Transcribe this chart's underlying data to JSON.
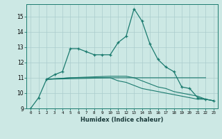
{
  "xlabel": "Humidex (Indice chaleur)",
  "x": [
    0,
    1,
    2,
    3,
    4,
    5,
    6,
    7,
    8,
    9,
    10,
    11,
    12,
    13,
    14,
    15,
    16,
    17,
    18,
    19,
    20,
    21,
    22,
    23
  ],
  "line1": [
    9.0,
    9.7,
    10.9,
    11.2,
    11.4,
    12.9,
    12.9,
    12.7,
    12.5,
    12.5,
    12.5,
    13.3,
    13.7,
    15.5,
    14.7,
    13.2,
    12.2,
    11.7,
    11.4,
    10.4,
    10.3,
    9.7,
    9.6,
    9.5
  ],
  "line2_x": [
    2,
    10,
    11,
    12,
    13,
    14,
    15,
    16,
    17,
    18,
    19,
    20,
    21,
    22
  ],
  "line2_y": [
    10.9,
    11.0,
    11.0,
    11.0,
    11.0,
    11.0,
    11.0,
    11.0,
    11.0,
    11.0,
    11.0,
    11.0,
    11.0,
    11.0
  ],
  "line3_x": [
    2,
    5,
    10,
    11,
    12,
    13,
    14,
    15,
    16,
    17,
    18,
    19,
    20,
    21,
    22,
    23
  ],
  "line3_y": [
    10.9,
    11.0,
    11.0,
    10.8,
    10.7,
    10.5,
    10.3,
    10.2,
    10.1,
    10.0,
    9.9,
    9.8,
    9.7,
    9.6,
    9.6,
    9.5
  ],
  "line4_x": [
    2,
    5,
    10,
    11,
    12,
    13,
    14,
    15,
    16,
    17,
    18,
    19,
    20,
    21,
    22,
    23
  ],
  "line4_y": [
    10.9,
    11.0,
    11.1,
    11.1,
    11.1,
    11.0,
    10.8,
    10.6,
    10.4,
    10.3,
    10.1,
    10.0,
    9.9,
    9.8,
    9.6,
    9.5
  ],
  "ylim": [
    9,
    15.8
  ],
  "yticks": [
    9,
    10,
    11,
    12,
    13,
    14,
    15
  ],
  "xticks": [
    0,
    1,
    2,
    3,
    4,
    5,
    6,
    7,
    8,
    9,
    10,
    11,
    12,
    13,
    14,
    15,
    16,
    17,
    18,
    19,
    20,
    21,
    22,
    23
  ],
  "line_color": "#1a7a6e",
  "bg_color": "#cce8e4",
  "grid_color": "#aacccc"
}
